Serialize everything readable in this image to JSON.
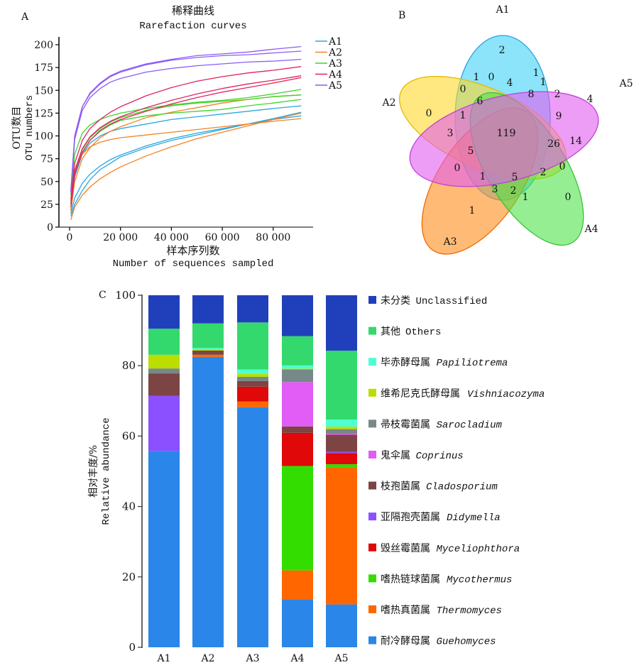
{
  "panels": {
    "a": {
      "letter": "A"
    },
    "b": {
      "letter": "B"
    },
    "c": {
      "letter": "C"
    }
  },
  "chart_data": [
    {
      "id": "rarefaction",
      "type": "line",
      "title": "稀释曲线",
      "subtitle": "Rarefaction curves",
      "xlabel": "样本序列数",
      "xlabel_en": "Number of sequences sampled",
      "ylabel": "OTU数目",
      "ylabel_en": "OTU numbers",
      "xlim": [
        0,
        100000
      ],
      "ylim": [
        0,
        210
      ],
      "xticks": [
        0,
        20000,
        40000,
        60000,
        80000
      ],
      "xtick_labels": [
        "0",
        "20 000",
        "40 000",
        "60 000",
        "80 000"
      ],
      "yticks": [
        0,
        25,
        50,
        75,
        100,
        125,
        150,
        175,
        200
      ],
      "ytick_labels": [
        "0",
        "25",
        "50",
        "75",
        "100",
        "125",
        "150",
        "175",
        "200"
      ],
      "grid": false,
      "legend_position": "top-right",
      "x": [
        500,
        2000,
        5000,
        8000,
        12000,
        16000,
        20000,
        30000,
        40000,
        50000,
        60000,
        70000,
        80000,
        91000
      ],
      "series": [
        {
          "name": "A1",
          "group": "A1",
          "color": "#2aa7e0",
          "values": [
            18,
            55,
            80,
            92,
            100,
            105,
            108,
            113,
            118,
            121,
            124,
            127,
            130,
            133
          ]
        },
        {
          "name": "A1",
          "group": "A1",
          "color": "#2aa7e0",
          "values": [
            15,
            32,
            48,
            58,
            67,
            74,
            79,
            89,
            97,
            103,
            108,
            113,
            118,
            122
          ]
        },
        {
          "name": "A1",
          "group": "A1",
          "color": "#2aa7e0",
          "values": [
            12,
            25,
            40,
            52,
            63,
            70,
            77,
            87,
            95,
            101,
            107,
            113,
            119,
            126
          ]
        },
        {
          "name": "A2",
          "group": "A2",
          "color": "#f58220",
          "values": [
            20,
            62,
            80,
            88,
            93,
            96,
            98,
            101,
            104,
            107,
            110,
            113,
            116,
            119
          ]
        },
        {
          "name": "A2",
          "group": "A2",
          "color": "#f58220",
          "values": [
            18,
            50,
            75,
            87,
            98,
            105,
            110,
            120,
            126,
            131,
            136,
            140,
            143,
            145
          ]
        },
        {
          "name": "A2",
          "group": "A2",
          "color": "#f58220",
          "values": [
            8,
            22,
            35,
            44,
            53,
            60,
            66,
            78,
            88,
            97,
            104,
            111,
            118,
            125
          ]
        },
        {
          "name": "A3",
          "group": "A3",
          "color": "#3ed42c",
          "values": [
            35,
            80,
            103,
            112,
            118,
            122,
            125,
            130,
            134,
            137,
            139,
            142,
            146,
            151
          ]
        },
        {
          "name": "A3",
          "group": "A3",
          "color": "#3ed42c",
          "values": [
            28,
            62,
            85,
            98,
            108,
            115,
            120,
            128,
            133,
            136,
            138,
            140,
            143,
            145
          ]
        },
        {
          "name": "A3",
          "group": "A3",
          "color": "#3ed42c",
          "values": [
            25,
            60,
            82,
            95,
            105,
            112,
            117,
            122,
            125,
            127,
            129,
            133,
            136,
            140
          ]
        },
        {
          "name": "A4",
          "group": "A4",
          "color": "#e0245e",
          "values": [
            30,
            70,
            95,
            108,
            118,
            126,
            132,
            144,
            153,
            160,
            165,
            169,
            172,
            176
          ]
        },
        {
          "name": "A4",
          "group": "A4",
          "color": "#e0245e",
          "values": [
            25,
            62,
            86,
            99,
            109,
            116,
            121,
            131,
            139,
            146,
            152,
            157,
            161,
            166
          ]
        },
        {
          "name": "A4",
          "group": "A4",
          "color": "#e0245e",
          "values": [
            22,
            58,
            82,
            95,
            106,
            113,
            118,
            127,
            135,
            142,
            148,
            153,
            158,
            164
          ]
        },
        {
          "name": "A5",
          "group": "A5",
          "color": "#8b5cf6",
          "values": [
            40,
            100,
            132,
            147,
            158,
            166,
            171,
            179,
            184,
            188,
            190,
            192,
            195,
            198
          ]
        },
        {
          "name": "A5",
          "group": "A5",
          "color": "#8b5cf6",
          "values": [
            40,
            100,
            132,
            146,
            157,
            165,
            170,
            178,
            183,
            186,
            188,
            189,
            191,
            193
          ]
        },
        {
          "name": "A5",
          "group": "A5",
          "color": "#8b5cf6",
          "values": [
            38,
            96,
            128,
            142,
            152,
            159,
            163,
            170,
            174,
            177,
            179,
            181,
            182,
            184
          ]
        }
      ],
      "legend": [
        {
          "name": "A1",
          "color": "#2aa7e0"
        },
        {
          "name": "A2",
          "color": "#f58220"
        },
        {
          "name": "A3",
          "color": "#3ed42c"
        },
        {
          "name": "A4",
          "color": "#e0245e"
        },
        {
          "name": "A5",
          "color": "#8b5cf6"
        }
      ]
    },
    {
      "id": "venn",
      "type": "venn",
      "sets": [
        {
          "name": "A1",
          "color": "#3fd2f7",
          "stroke": "#2a9fe0"
        },
        {
          "name": "A2",
          "color": "#ffd92a",
          "stroke": "#e8b800"
        },
        {
          "name": "A3",
          "color": "#ff8c1a",
          "stroke": "#f06a00"
        },
        {
          "name": "A4",
          "color": "#4fe24a",
          "stroke": "#3ac23a"
        },
        {
          "name": "A5",
          "color": "#e25cf0",
          "stroke": "#c040d8"
        }
      ],
      "region_values": [
        {
          "region": "A1 only",
          "value": "2"
        },
        {
          "region": "A2 only",
          "value": "0"
        },
        {
          "region": "A3 only",
          "value": "1"
        },
        {
          "region": "A4 only",
          "value": "0"
        },
        {
          "region": "A5 only",
          "value": "4"
        },
        {
          "region": "r-0a",
          "value": "0"
        },
        {
          "region": "r-1a",
          "value": "1"
        },
        {
          "region": "r-4a",
          "value": "4"
        },
        {
          "region": "r-1b",
          "value": "1"
        },
        {
          "region": "r-1c",
          "value": "1"
        },
        {
          "region": "r-0b",
          "value": "0"
        },
        {
          "region": "r-6",
          "value": "6"
        },
        {
          "region": "r-8",
          "value": "8"
        },
        {
          "region": "r-2a",
          "value": "2"
        },
        {
          "region": "r-1d",
          "value": "1"
        },
        {
          "region": "r-9",
          "value": "9"
        },
        {
          "region": "r-3",
          "value": "3"
        },
        {
          "region": "all five",
          "value": "119"
        },
        {
          "region": "r-14",
          "value": "14"
        },
        {
          "region": "r-26",
          "value": "26"
        },
        {
          "region": "r-5a",
          "value": "5"
        },
        {
          "region": "r-0c",
          "value": "0"
        },
        {
          "region": "r-0d",
          "value": "0"
        },
        {
          "region": "r-1e",
          "value": "1"
        },
        {
          "region": "r-5b",
          "value": "5"
        },
        {
          "region": "r-2b",
          "value": "2"
        },
        {
          "region": "r-3b",
          "value": "3"
        },
        {
          "region": "r-2c",
          "value": "2"
        },
        {
          "region": "r-1f",
          "value": "1"
        }
      ]
    },
    {
      "id": "abundance",
      "type": "bar",
      "stacked": true,
      "categories": [
        "A1",
        "A2",
        "A3",
        "A4",
        "A5"
      ],
      "ylabel": "相对丰度/%",
      "ylabel_en": "Relative abundance",
      "ylim": [
        0,
        100
      ],
      "yticks": [
        0,
        20,
        40,
        60,
        80,
        100
      ],
      "ytick_labels": [
        "0",
        "20",
        "40",
        "60",
        "80",
        "100"
      ],
      "grid": false,
      "legend_position": "right",
      "series": [
        {
          "name_cn": "耐冷酵母属",
          "name_latin": "Guehomyces",
          "color": "#2a86e8",
          "values": [
            55.8,
            82.5,
            68.0,
            13.6,
            12.2
          ]
        },
        {
          "name_cn": "嗜热真菌属",
          "name_latin": "Thermomyces",
          "color": "#ff6600",
          "values": [
            0.0,
            0.6,
            1.6,
            8.2,
            38.9
          ]
        },
        {
          "name_cn": "嗜热链球菌属",
          "name_latin": "Mycothermus",
          "color": "#33dd00",
          "values": [
            0.0,
            0.0,
            0.0,
            29.6,
            1.0
          ]
        },
        {
          "name_cn": "毁丝霉菌属",
          "name_latin": "Myceliophthora",
          "color": "#e00808",
          "values": [
            0.0,
            0.0,
            4.2,
            9.4,
            3.2
          ]
        },
        {
          "name_cn": "亚隔孢壳菌属",
          "name_latin": "Didymella",
          "color": "#8b50ff",
          "values": [
            15.6,
            0.0,
            0.0,
            0.0,
            0.3
          ]
        },
        {
          "name_cn": "枝孢菌属",
          "name_latin": "Cladosporium",
          "color": "#7d4444",
          "values": [
            6.4,
            1.2,
            1.6,
            1.8,
            4.9
          ]
        },
        {
          "name_cn": "鬼伞属",
          "name_latin": "Coprinus",
          "color": "#e25cf6",
          "values": [
            0.0,
            0.0,
            0.0,
            12.6,
            0.3
          ]
        },
        {
          "name_cn": "帚枝霉菌属",
          "name_latin": "Sarocladium",
          "color": "#778888",
          "values": [
            1.4,
            0.0,
            1.2,
            3.6,
            1.3
          ]
        },
        {
          "name_cn": "维希尼克氏酵母属",
          "name_latin": "Vishniacozyma",
          "color": "#bbdd00",
          "values": [
            3.9,
            0.4,
            0.8,
            0.2,
            0.7
          ]
        },
        {
          "name_cn": "毕赤酵母属",
          "name_latin": "Papiliotrema",
          "color": "#4dffd2",
          "values": [
            0.0,
            0.3,
            1.3,
            0.9,
            2.0
          ]
        },
        {
          "name_cn": "其他",
          "name_latin": "Others",
          "color": "#33d96c",
          "values": [
            7.4,
            7.0,
            13.3,
            8.3,
            19.6
          ]
        },
        {
          "name_cn": "未分类",
          "name_latin": "Unclassified",
          "color": "#2040bb",
          "values": [
            9.5,
            8.0,
            7.7,
            11.6,
            15.8
          ]
        }
      ],
      "legend": [
        {
          "cn": "未分类",
          "latin": "Unclassified",
          "italic": false,
          "color": "#2040bb"
        },
        {
          "cn": "其他",
          "latin": "Others",
          "italic": false,
          "color": "#33d96c"
        },
        {
          "cn": "毕赤酵母属",
          "latin": "Papiliotrema",
          "italic": true,
          "color": "#4dffd2"
        },
        {
          "cn": "维希尼克氏酵母属",
          "latin": "Vishniacozyma",
          "italic": true,
          "color": "#bbdd00"
        },
        {
          "cn": "帚枝霉菌属",
          "latin": "Sarocladium",
          "italic": true,
          "color": "#778888"
        },
        {
          "cn": "鬼伞属",
          "latin": "Coprinus",
          "italic": true,
          "color": "#e25cf6"
        },
        {
          "cn": "枝孢菌属",
          "latin": "Cladosporium",
          "italic": true,
          "color": "#7d4444"
        },
        {
          "cn": "亚隔孢壳菌属",
          "latin": "Didymella",
          "italic": true,
          "color": "#8b50ff"
        },
        {
          "cn": "毁丝霉菌属",
          "latin": "Myceliophthora",
          "italic": true,
          "color": "#e00808"
        },
        {
          "cn": "嗜热链球菌属",
          "latin": "Mycothermus",
          "italic": true,
          "color": "#33dd00"
        },
        {
          "cn": "嗜热真菌属",
          "latin": "Thermomyces",
          "italic": true,
          "color": "#ff6600"
        },
        {
          "cn": "耐冷酵母属",
          "latin": "Guehomyces",
          "italic": true,
          "color": "#2a86e8"
        }
      ]
    }
  ]
}
